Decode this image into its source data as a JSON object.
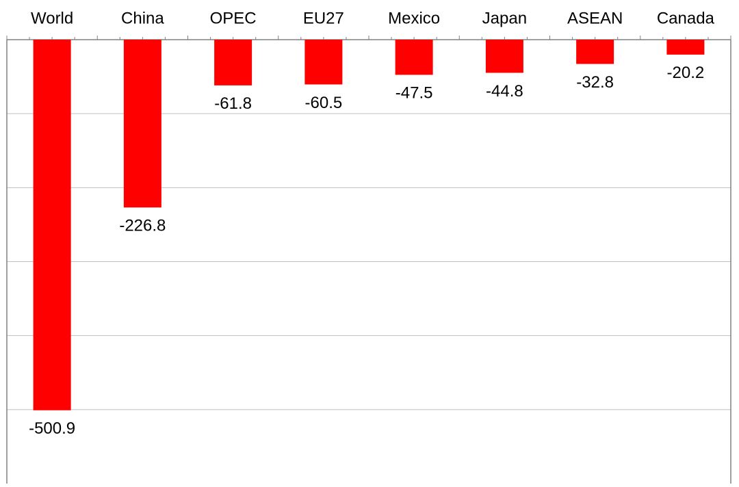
{
  "chart_data": {
    "type": "bar",
    "categories": [
      "World",
      "China",
      "OPEC",
      "EU27",
      "Mexico",
      "Japan",
      "ASEAN",
      "Canada"
    ],
    "values": [
      -500.9,
      -226.8,
      -61.8,
      -60.5,
      -47.5,
      -44.8,
      -32.8,
      -20.2
    ],
    "color": "#ff0000",
    "ylim": [
      -600,
      0
    ],
    "yticks": [
      0,
      -100,
      -200,
      -300,
      -400,
      -500
    ],
    "grid": true
  }
}
